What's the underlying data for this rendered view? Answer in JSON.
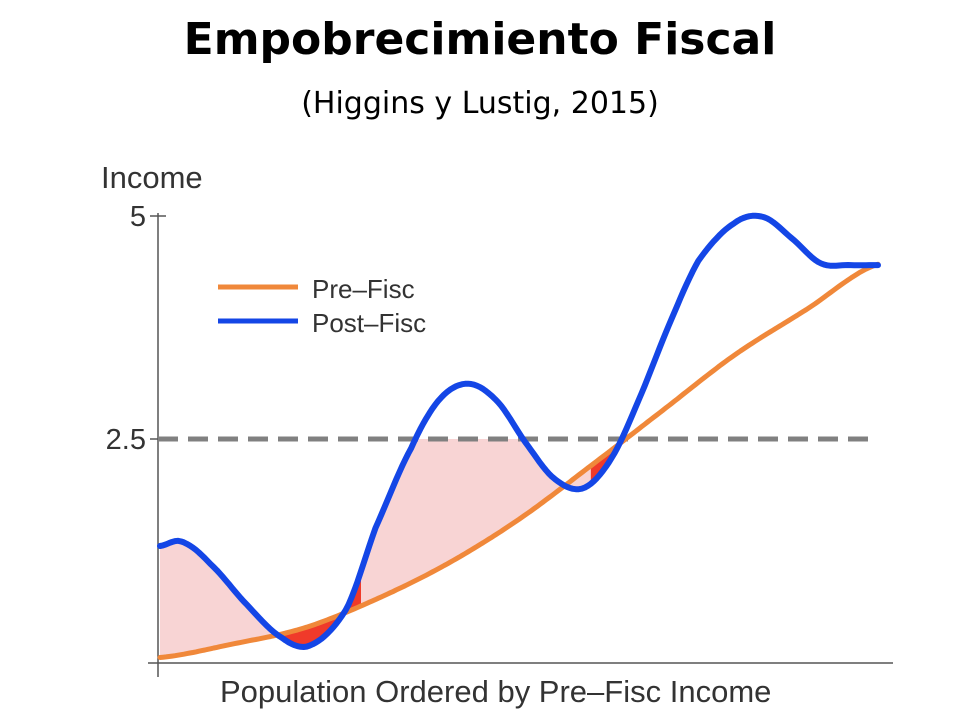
{
  "header": {
    "title": "Empobrecimiento Fiscal",
    "subtitle": "(Higgins y Lustig, 2015)"
  },
  "chart_data": {
    "type": "line",
    "ylabel": "Income",
    "xlabel": "Population Ordered by Pre–Fisc Income",
    "yticks": [
      {
        "value": 5,
        "label": "5"
      },
      {
        "value": 2.5,
        "label": "2.5"
      }
    ],
    "ylim": [
      0,
      5
    ],
    "xlim": [
      0,
      1
    ],
    "poverty_line": 2.5,
    "legend_position": "top-left",
    "series": [
      {
        "name": "Pre–Fisc",
        "color": "#f0883a",
        "x": [
          0.0,
          0.1,
          0.2,
          0.3,
          0.4,
          0.5,
          0.6,
          0.7,
          0.8,
          0.9,
          1.0
        ],
        "y": [
          0.05,
          0.2,
          0.38,
          0.7,
          1.1,
          1.6,
          2.2,
          2.82,
          3.44,
          3.95,
          4.46
        ]
      },
      {
        "name": "Post–Fisc",
        "color": "#1446e6",
        "x": [
          0.0,
          0.03,
          0.07,
          0.12,
          0.17,
          0.21,
          0.26,
          0.3,
          0.35,
          0.39,
          0.43,
          0.47,
          0.51,
          0.55,
          0.59,
          0.63,
          0.67,
          0.71,
          0.75,
          0.8,
          0.84,
          0.88,
          0.92,
          0.96,
          1.0
        ],
        "y": [
          1.3,
          1.35,
          1.1,
          0.65,
          0.27,
          0.19,
          0.6,
          1.5,
          2.4,
          2.95,
          3.12,
          2.92,
          2.45,
          2.05,
          1.95,
          2.3,
          3.0,
          3.8,
          4.5,
          4.92,
          4.99,
          4.75,
          4.47,
          4.45,
          4.45
        ]
      }
    ],
    "fills": [
      {
        "kind": "light",
        "color": "#f8d4d4",
        "x_range": [
          0.0,
          0.16
        ]
      },
      {
        "kind": "dark",
        "color": "#f03a2a",
        "x_range": [
          0.16,
          0.28
        ]
      },
      {
        "kind": "light",
        "color": "#f8d4d4",
        "x_range": [
          0.28,
          0.6
        ]
      },
      {
        "kind": "dark",
        "color": "#f03a2a",
        "x_range": [
          0.6,
          0.73
        ]
      }
    ],
    "grid": false,
    "dashed_line_color": "#808080"
  }
}
